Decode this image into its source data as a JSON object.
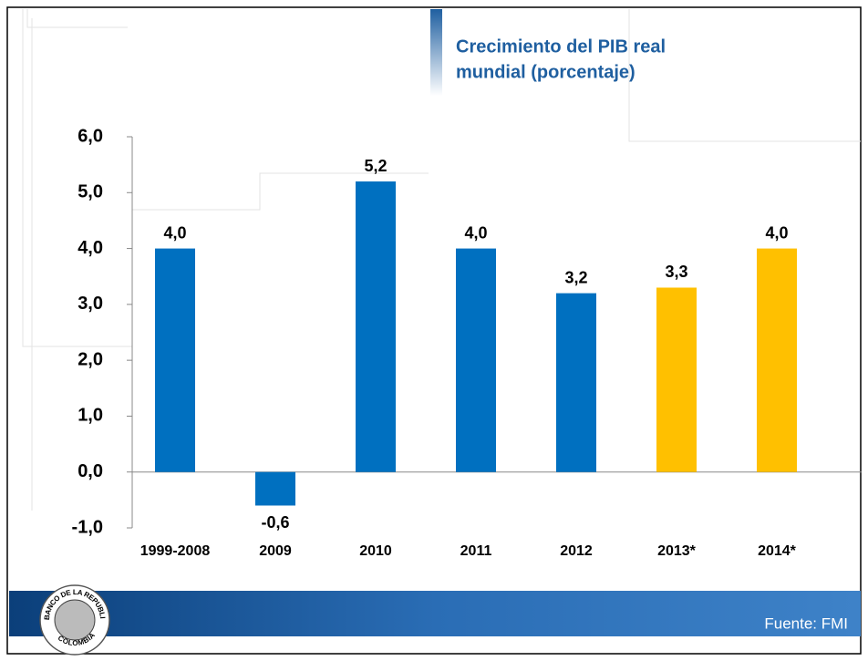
{
  "chart_data": {
    "type": "bar",
    "title": "Crecimiento del PIB real",
    "subtitle": "mundial (porcentaje)",
    "source": "Fuente: FMI",
    "logo_text": [
      "BANCO DE LA REPUBLICA",
      "COLOMBIA"
    ],
    "categories": [
      "1999-2008",
      "2009",
      "2010",
      "2011",
      "2012",
      "2013*",
      "2014*"
    ],
    "values": [
      4.0,
      -0.6,
      5.2,
      4.0,
      3.2,
      3.3,
      4.0
    ],
    "value_labels": [
      "4,0",
      "-0,6",
      "5,2",
      "4,0",
      "3,2",
      "3,3",
      "4,0"
    ],
    "colors": [
      "#0070c0",
      "#0070c0",
      "#0070c0",
      "#0070c0",
      "#0070c0",
      "#ffc000",
      "#ffc000"
    ],
    "ylim": [
      -1,
      6
    ],
    "yticks": [
      {
        "value": -1,
        "label": "-1,0"
      },
      {
        "value": 0,
        "label": "0,0"
      },
      {
        "value": 1,
        "label": "1,0"
      },
      {
        "value": 2,
        "label": "2,0"
      },
      {
        "value": 3,
        "label": "3,0"
      },
      {
        "value": 4,
        "label": "4,0"
      },
      {
        "value": 5,
        "label": "5,0"
      },
      {
        "value": 6,
        "label": "6,0"
      }
    ]
  }
}
